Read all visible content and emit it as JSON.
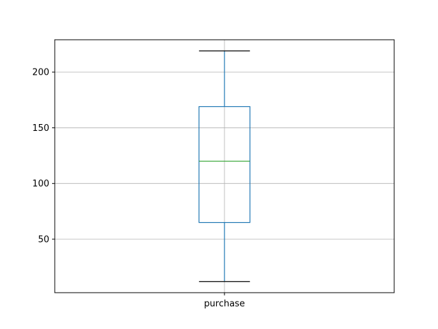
{
  "chart_data": {
    "type": "box",
    "categories": [
      "purchase"
    ],
    "series": [
      {
        "whisker_low": 12,
        "q1": 65,
        "median": 120,
        "q3": 169,
        "whisker_high": 219
      }
    ],
    "xlabel": "",
    "ylabel": "",
    "ylim": [
      2,
      229
    ],
    "yticks": [
      50,
      100,
      150,
      200
    ],
    "grid": true,
    "colors": {
      "box": "#1f77b4",
      "whisker": "#1f77b4",
      "cap": "#000000",
      "median": "#2ca02c",
      "grid": "#b0b0b0",
      "axes": "#000000"
    }
  }
}
